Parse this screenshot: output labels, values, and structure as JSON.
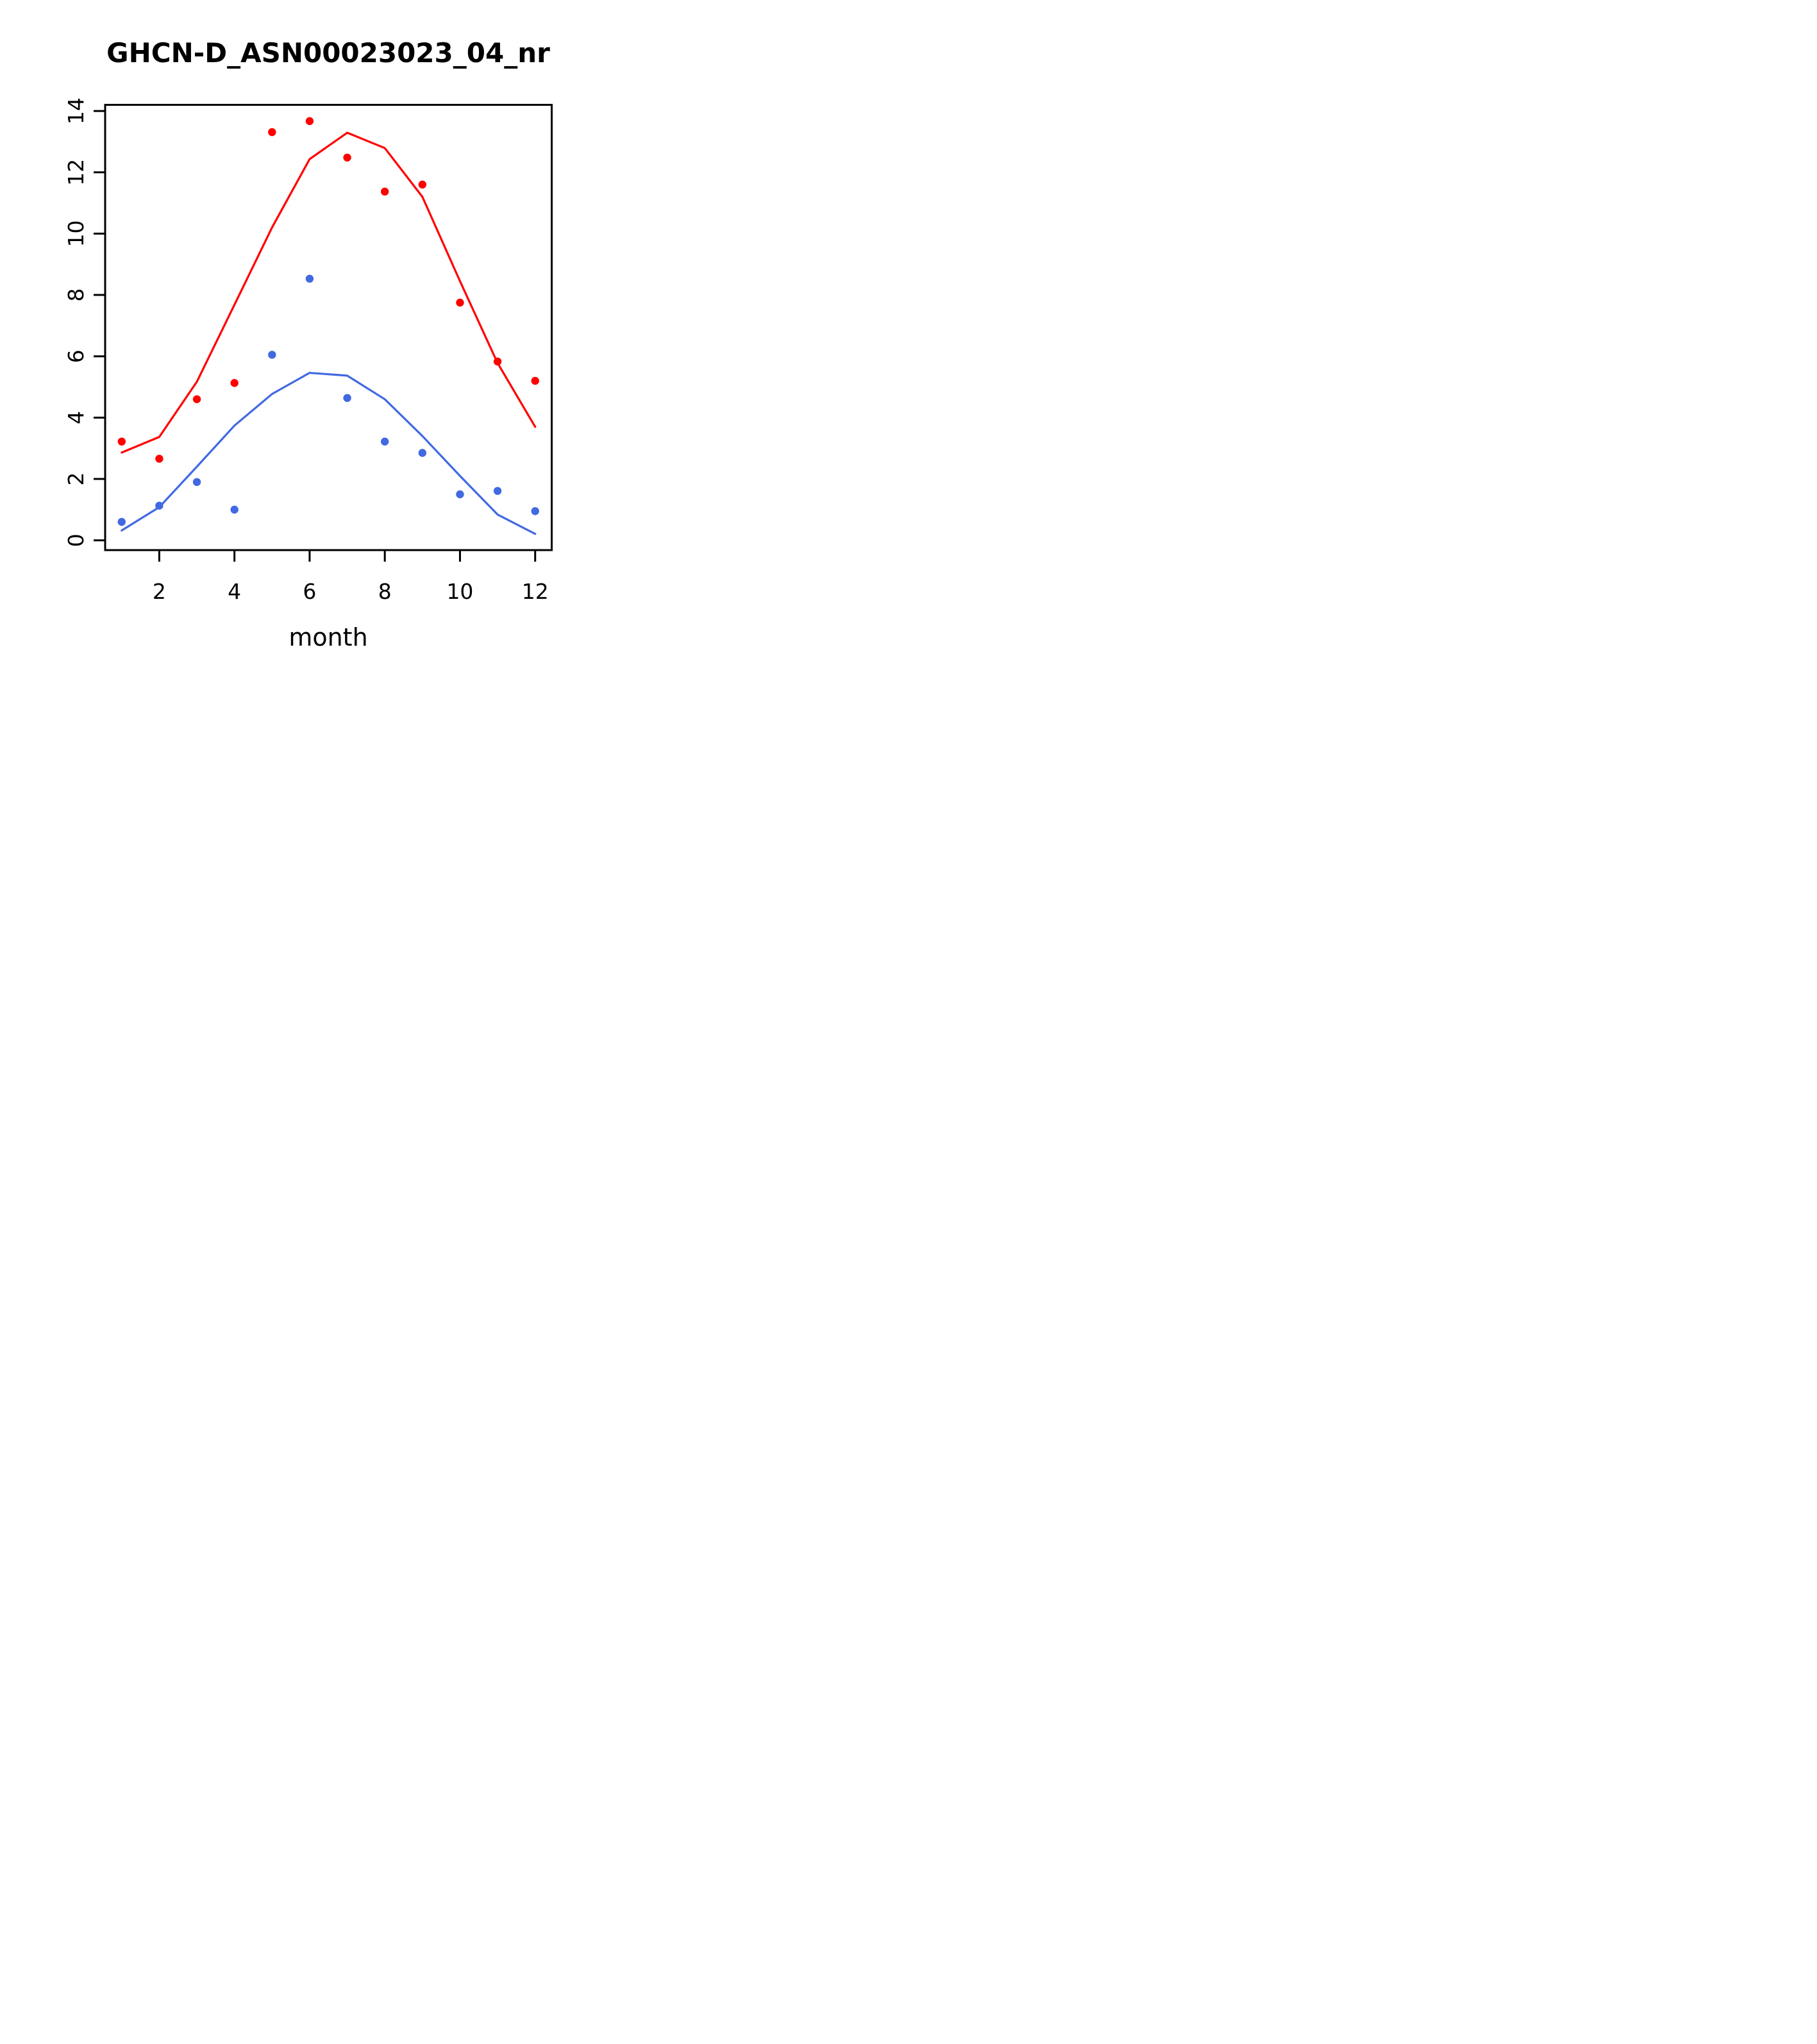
{
  "chart_data": {
    "type": "line",
    "title": "GHCN-D_ASN00023023_04_nr",
    "xlabel": "month",
    "ylabel": "",
    "x": [
      1,
      2,
      3,
      4,
      5,
      6,
      7,
      8,
      9,
      10,
      11,
      12
    ],
    "xticks": [
      2,
      4,
      6,
      8,
      10,
      12
    ],
    "yticks": [
      0,
      2,
      4,
      6,
      8,
      10,
      12,
      14
    ],
    "xlim": [
      0.56,
      12.44
    ],
    "ylim": [
      -0.32,
      14.2
    ],
    "grid": false,
    "legend": "none",
    "colors": {
      "red": "#ff0000",
      "blue": "#4169e1",
      "axis": "#000000"
    },
    "series": [
      {
        "name": "red-fit-line",
        "type": "line",
        "color": "#ff0000",
        "values": [
          2.86,
          3.37,
          5.17,
          7.68,
          10.2,
          12.43,
          13.29,
          12.79,
          11.2,
          8.45,
          5.78,
          3.7
        ]
      },
      {
        "name": "blue-fit-line",
        "type": "line",
        "color": "#4169e1",
        "values": [
          0.32,
          1.08,
          2.4,
          3.74,
          4.77,
          5.46,
          5.37,
          4.6,
          3.4,
          2.1,
          0.84,
          0.21
        ]
      },
      {
        "name": "red-points",
        "type": "scatter",
        "color": "#ff0000",
        "values": [
          3.22,
          2.66,
          4.6,
          5.13,
          13.31,
          13.67,
          12.48,
          11.37,
          11.6,
          7.75,
          5.83,
          5.2
        ]
      },
      {
        "name": "blue-points",
        "type": "scatter",
        "color": "#4169e1",
        "values": [
          0.6,
          1.13,
          1.9,
          1.0,
          6.05,
          8.53,
          4.64,
          3.22,
          2.85,
          1.5,
          1.61,
          0.95
        ]
      }
    ]
  }
}
